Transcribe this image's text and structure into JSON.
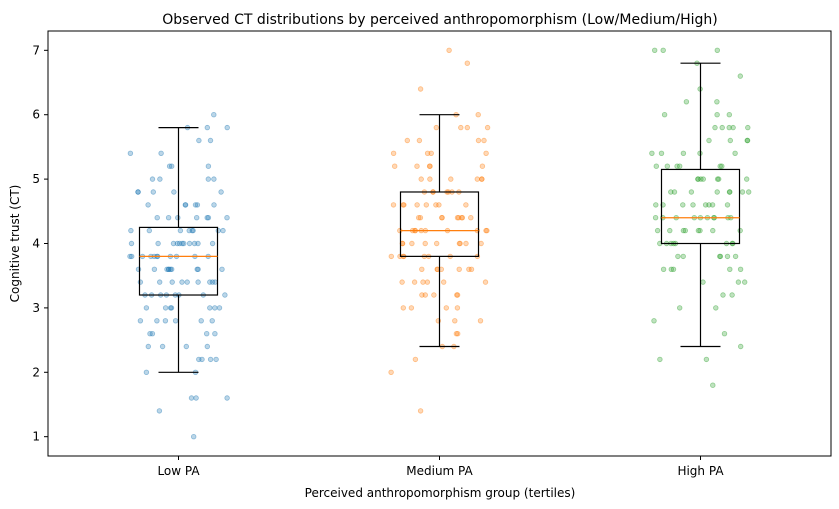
{
  "chart_data": {
    "type": "box",
    "title": "Observed CT distributions by perceived anthropomorphism (Low/Medium/High)",
    "xlabel": "Perceived anthropomorphism group (tertiles)",
    "ylabel": "Cognitive trust (CT)",
    "categories": [
      "Low PA",
      "Medium PA",
      "High PA"
    ],
    "yticks": [
      1,
      2,
      3,
      4,
      5,
      6,
      7
    ],
    "ylim": [
      0.7,
      7.3
    ],
    "grid": false,
    "boxes": [
      {
        "name": "Low PA",
        "color": "#1f77b4",
        "whisker_low": 2.0,
        "q1": 3.2,
        "median": 3.8,
        "q3": 4.25,
        "whisker_high": 5.8,
        "points": [
          1.0,
          1.4,
          1.6,
          1.6,
          1.6,
          2.0,
          2.0,
          2.2,
          2.2,
          2.2,
          2.2,
          2.4,
          2.4,
          2.4,
          2.4,
          2.6,
          2.6,
          2.6,
          2.6,
          2.8,
          2.8,
          2.8,
          2.8,
          2.8,
          2.8,
          3.0,
          3.0,
          3.0,
          3.0,
          3.0,
          3.0,
          3.0,
          3.2,
          3.2,
          3.2,
          3.2,
          3.2,
          3.2,
          3.2,
          3.2,
          3.4,
          3.4,
          3.4,
          3.4,
          3.4,
          3.4,
          3.4,
          3.4,
          3.4,
          3.6,
          3.6,
          3.6,
          3.6,
          3.6,
          3.6,
          3.6,
          3.6,
          3.6,
          3.6,
          3.8,
          3.8,
          3.8,
          3.8,
          3.8,
          3.8,
          3.8,
          3.8,
          3.8,
          3.8,
          3.8,
          4.0,
          4.0,
          4.0,
          4.0,
          4.0,
          4.0,
          4.0,
          4.0,
          4.0,
          4.0,
          4.0,
          4.2,
          4.2,
          4.2,
          4.2,
          4.2,
          4.2,
          4.2,
          4.2,
          4.4,
          4.4,
          4.4,
          4.4,
          4.4,
          4.4,
          4.4,
          4.6,
          4.6,
          4.6,
          4.6,
          4.6,
          4.6,
          4.8,
          4.8,
          4.8,
          4.8,
          4.8,
          5.0,
          5.0,
          5.0,
          5.0,
          5.2,
          5.2,
          5.2,
          5.4,
          5.4,
          5.6,
          5.6,
          5.8,
          5.8,
          5.8,
          6.0
        ]
      },
      {
        "name": "Medium PA",
        "color": "#ff7f0e",
        "whisker_low": 2.4,
        "q1": 3.8,
        "median": 4.2,
        "q3": 4.8,
        "whisker_high": 6.0,
        "points": [
          1.4,
          2.0,
          2.2,
          2.4,
          2.4,
          2.6,
          2.6,
          2.8,
          2.8,
          2.8,
          3.0,
          3.0,
          3.0,
          3.0,
          3.2,
          3.2,
          3.2,
          3.2,
          3.2,
          3.4,
          3.4,
          3.4,
          3.4,
          3.4,
          3.4,
          3.6,
          3.6,
          3.6,
          3.6,
          3.6,
          3.6,
          3.6,
          3.8,
          3.8,
          3.8,
          3.8,
          3.8,
          3.8,
          3.8,
          3.8,
          4.0,
          4.0,
          4.0,
          4.0,
          4.0,
          4.0,
          4.0,
          4.0,
          4.0,
          4.2,
          4.2,
          4.2,
          4.2,
          4.2,
          4.2,
          4.2,
          4.2,
          4.2,
          4.2,
          4.4,
          4.4,
          4.4,
          4.4,
          4.4,
          4.4,
          4.4,
          4.4,
          4.4,
          4.6,
          4.6,
          4.6,
          4.6,
          4.6,
          4.6,
          4.6,
          4.6,
          4.8,
          4.8,
          4.8,
          4.8,
          4.8,
          4.8,
          4.8,
          5.0,
          5.0,
          5.0,
          5.0,
          5.0,
          5.0,
          5.2,
          5.2,
          5.2,
          5.2,
          5.2,
          5.4,
          5.4,
          5.4,
          5.4,
          5.6,
          5.6,
          5.6,
          5.6,
          5.8,
          5.8,
          5.8,
          5.8,
          6.0,
          6.0,
          6.4,
          6.8,
          7.0
        ]
      },
      {
        "name": "High PA",
        "color": "#2ca02c",
        "whisker_low": 2.4,
        "q1": 4.0,
        "median": 4.4,
        "q3": 5.15,
        "whisker_high": 6.8,
        "points": [
          1.8,
          2.2,
          2.2,
          2.4,
          2.6,
          2.8,
          3.0,
          3.0,
          3.2,
          3.2,
          3.4,
          3.4,
          3.4,
          3.6,
          3.6,
          3.6,
          3.6,
          3.6,
          3.8,
          3.8,
          3.8,
          3.8,
          3.8,
          3.8,
          4.0,
          4.0,
          4.0,
          4.0,
          4.0,
          4.0,
          4.0,
          4.0,
          4.2,
          4.2,
          4.2,
          4.2,
          4.2,
          4.2,
          4.2,
          4.2,
          4.4,
          4.4,
          4.4,
          4.4,
          4.4,
          4.4,
          4.4,
          4.4,
          4.4,
          4.4,
          4.6,
          4.6,
          4.6,
          4.6,
          4.6,
          4.6,
          4.6,
          4.6,
          4.8,
          4.8,
          4.8,
          4.8,
          4.8,
          4.8,
          4.8,
          4.8,
          5.0,
          5.0,
          5.0,
          5.0,
          5.0,
          5.0,
          5.0,
          5.2,
          5.2,
          5.2,
          5.2,
          5.2,
          5.2,
          5.4,
          5.4,
          5.4,
          5.4,
          5.4,
          5.6,
          5.6,
          5.6,
          5.6,
          5.8,
          5.8,
          5.8,
          5.8,
          5.8,
          6.0,
          6.0,
          6.0,
          6.2,
          6.2,
          6.4,
          6.6,
          6.8,
          7.0,
          7.0,
          7.0
        ]
      }
    ]
  }
}
